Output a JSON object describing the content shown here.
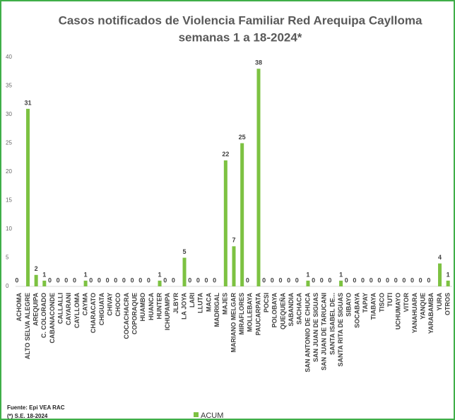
{
  "chart_data": {
    "type": "bar",
    "title": "Casos notificados  de Violencia Familiar Red Arequipa Caylloma",
    "subtitle": "semanas 1 a 18-2024*",
    "categories": [
      "ACHOMA",
      "ALTO SELVA ALEGRE",
      "AREQUIPA",
      "C. COLORADO",
      "CABANACONDE",
      "CALLALLI",
      "CAYARANI",
      "CAYLLOMA",
      "CAYMA",
      "CHARACATO",
      "CHIGUATA",
      "CHIVAY",
      "CHOCO",
      "COCACHACRA",
      "COPORAQUE",
      "HUAMBO",
      "HUANCA",
      "HUNTER",
      "ICHUPAMPA",
      "JLBYR",
      "LA JOYA",
      "LARI",
      "LLUTA",
      "MACA",
      "MADRIGAL",
      "MAJES",
      "MARIANO MELGAR",
      "MIRAFLORES",
      "MOLLEBAYA",
      "PAUCARPATA",
      "POCSI",
      "POLOBAYA",
      "QUEQUEÑA",
      "SABANDIA",
      "SACHACA",
      "SAN ANTONIO DE CHUCA",
      "SAN JUAN DE SIGUAS",
      "SAN JUAN DE TARUCANI",
      "SANTA ISABEL DE...",
      "SANTA RITA DE SIGUAS",
      "SIBAYO",
      "SOCABAYA",
      "TAPAY",
      "TIABAYA",
      "TISCO",
      "TUTI",
      "UCHUMAYO",
      "VITOR",
      "YANAHUARA",
      "YANQUE",
      "YARABAMBA",
      "YURA",
      "OTROS"
    ],
    "series": [
      {
        "name": "ACUM",
        "color": "#7dc242",
        "values": [
          0,
          31,
          2,
          1,
          0,
          0,
          0,
          0,
          1,
          0,
          0,
          0,
          0,
          0,
          0,
          0,
          0,
          1,
          0,
          0,
          5,
          0,
          0,
          0,
          0,
          22,
          7,
          25,
          0,
          38,
          0,
          0,
          0,
          0,
          0,
          1,
          0,
          0,
          0,
          1,
          0,
          0,
          0,
          0,
          0,
          0,
          0,
          0,
          0,
          0,
          0,
          4,
          1
        ]
      }
    ],
    "ylim": [
      0,
      40
    ],
    "yticks": [
      0,
      5,
      10,
      15,
      20,
      25,
      30,
      35,
      40
    ],
    "notes": [
      "Fuente: Epi VEA RAC",
      "(*) S.E. 18-2024"
    ]
  }
}
